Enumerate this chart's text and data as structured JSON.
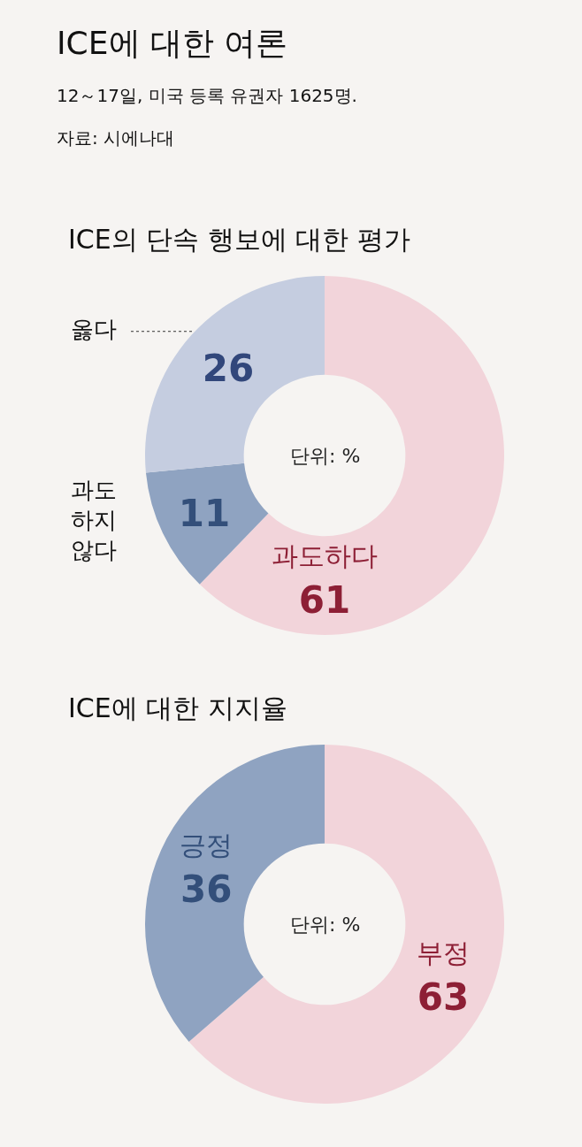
{
  "chart_data": [
    {
      "type": "other",
      "title": "ICE에 대한 여론",
      "subtitle": "12～17일, 미국 등록 유권자 1625명.",
      "annotations": [
        "자료: 시에나대"
      ]
    },
    {
      "type": "donut",
      "title": "ICE의 단속 행보에 대한 평가",
      "categories": [
        "과도하다",
        "과도하지 않다",
        "옳다"
      ],
      "values": [
        61,
        11,
        26
      ],
      "colors": [
        "#f2d4da",
        "#8fa3c1",
        "#c5cde0"
      ],
      "data_labels": true,
      "annotations": [
        "단위: %"
      ]
    },
    {
      "type": "donut",
      "title": "ICE에 대한 지지율",
      "categories": [
        "부정",
        "긍정"
      ],
      "values": [
        63,
        36
      ],
      "colors": [
        "#f2d4da",
        "#8fa3c1"
      ],
      "data_labels": true,
      "annotations": [
        "단위: %"
      ]
    }
  ]
}
